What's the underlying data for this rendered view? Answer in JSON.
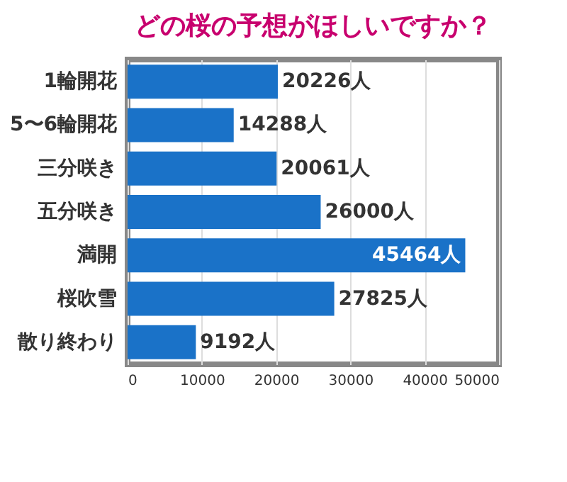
{
  "chart_data": {
    "type": "bar",
    "orientation": "horizontal",
    "title": "どの桜の予想がほしいですか？",
    "categories": [
      "1輪開花",
      "5〜6輪開花",
      "三分咲き",
      "五分咲き",
      "満開",
      "桜吹雪",
      "散り終わり"
    ],
    "values": [
      20226,
      14288,
      20061,
      26000,
      45464,
      27825,
      9192
    ],
    "value_labels": [
      "20226人",
      "14288人",
      "20061人",
      "26000人",
      "45464人",
      "27825人",
      "9192人"
    ],
    "color": "#1a72c8",
    "xlim": [
      0,
      50000
    ],
    "xticks": [
      0,
      10000,
      20000,
      30000,
      40000,
      50000
    ],
    "grid": "x"
  }
}
